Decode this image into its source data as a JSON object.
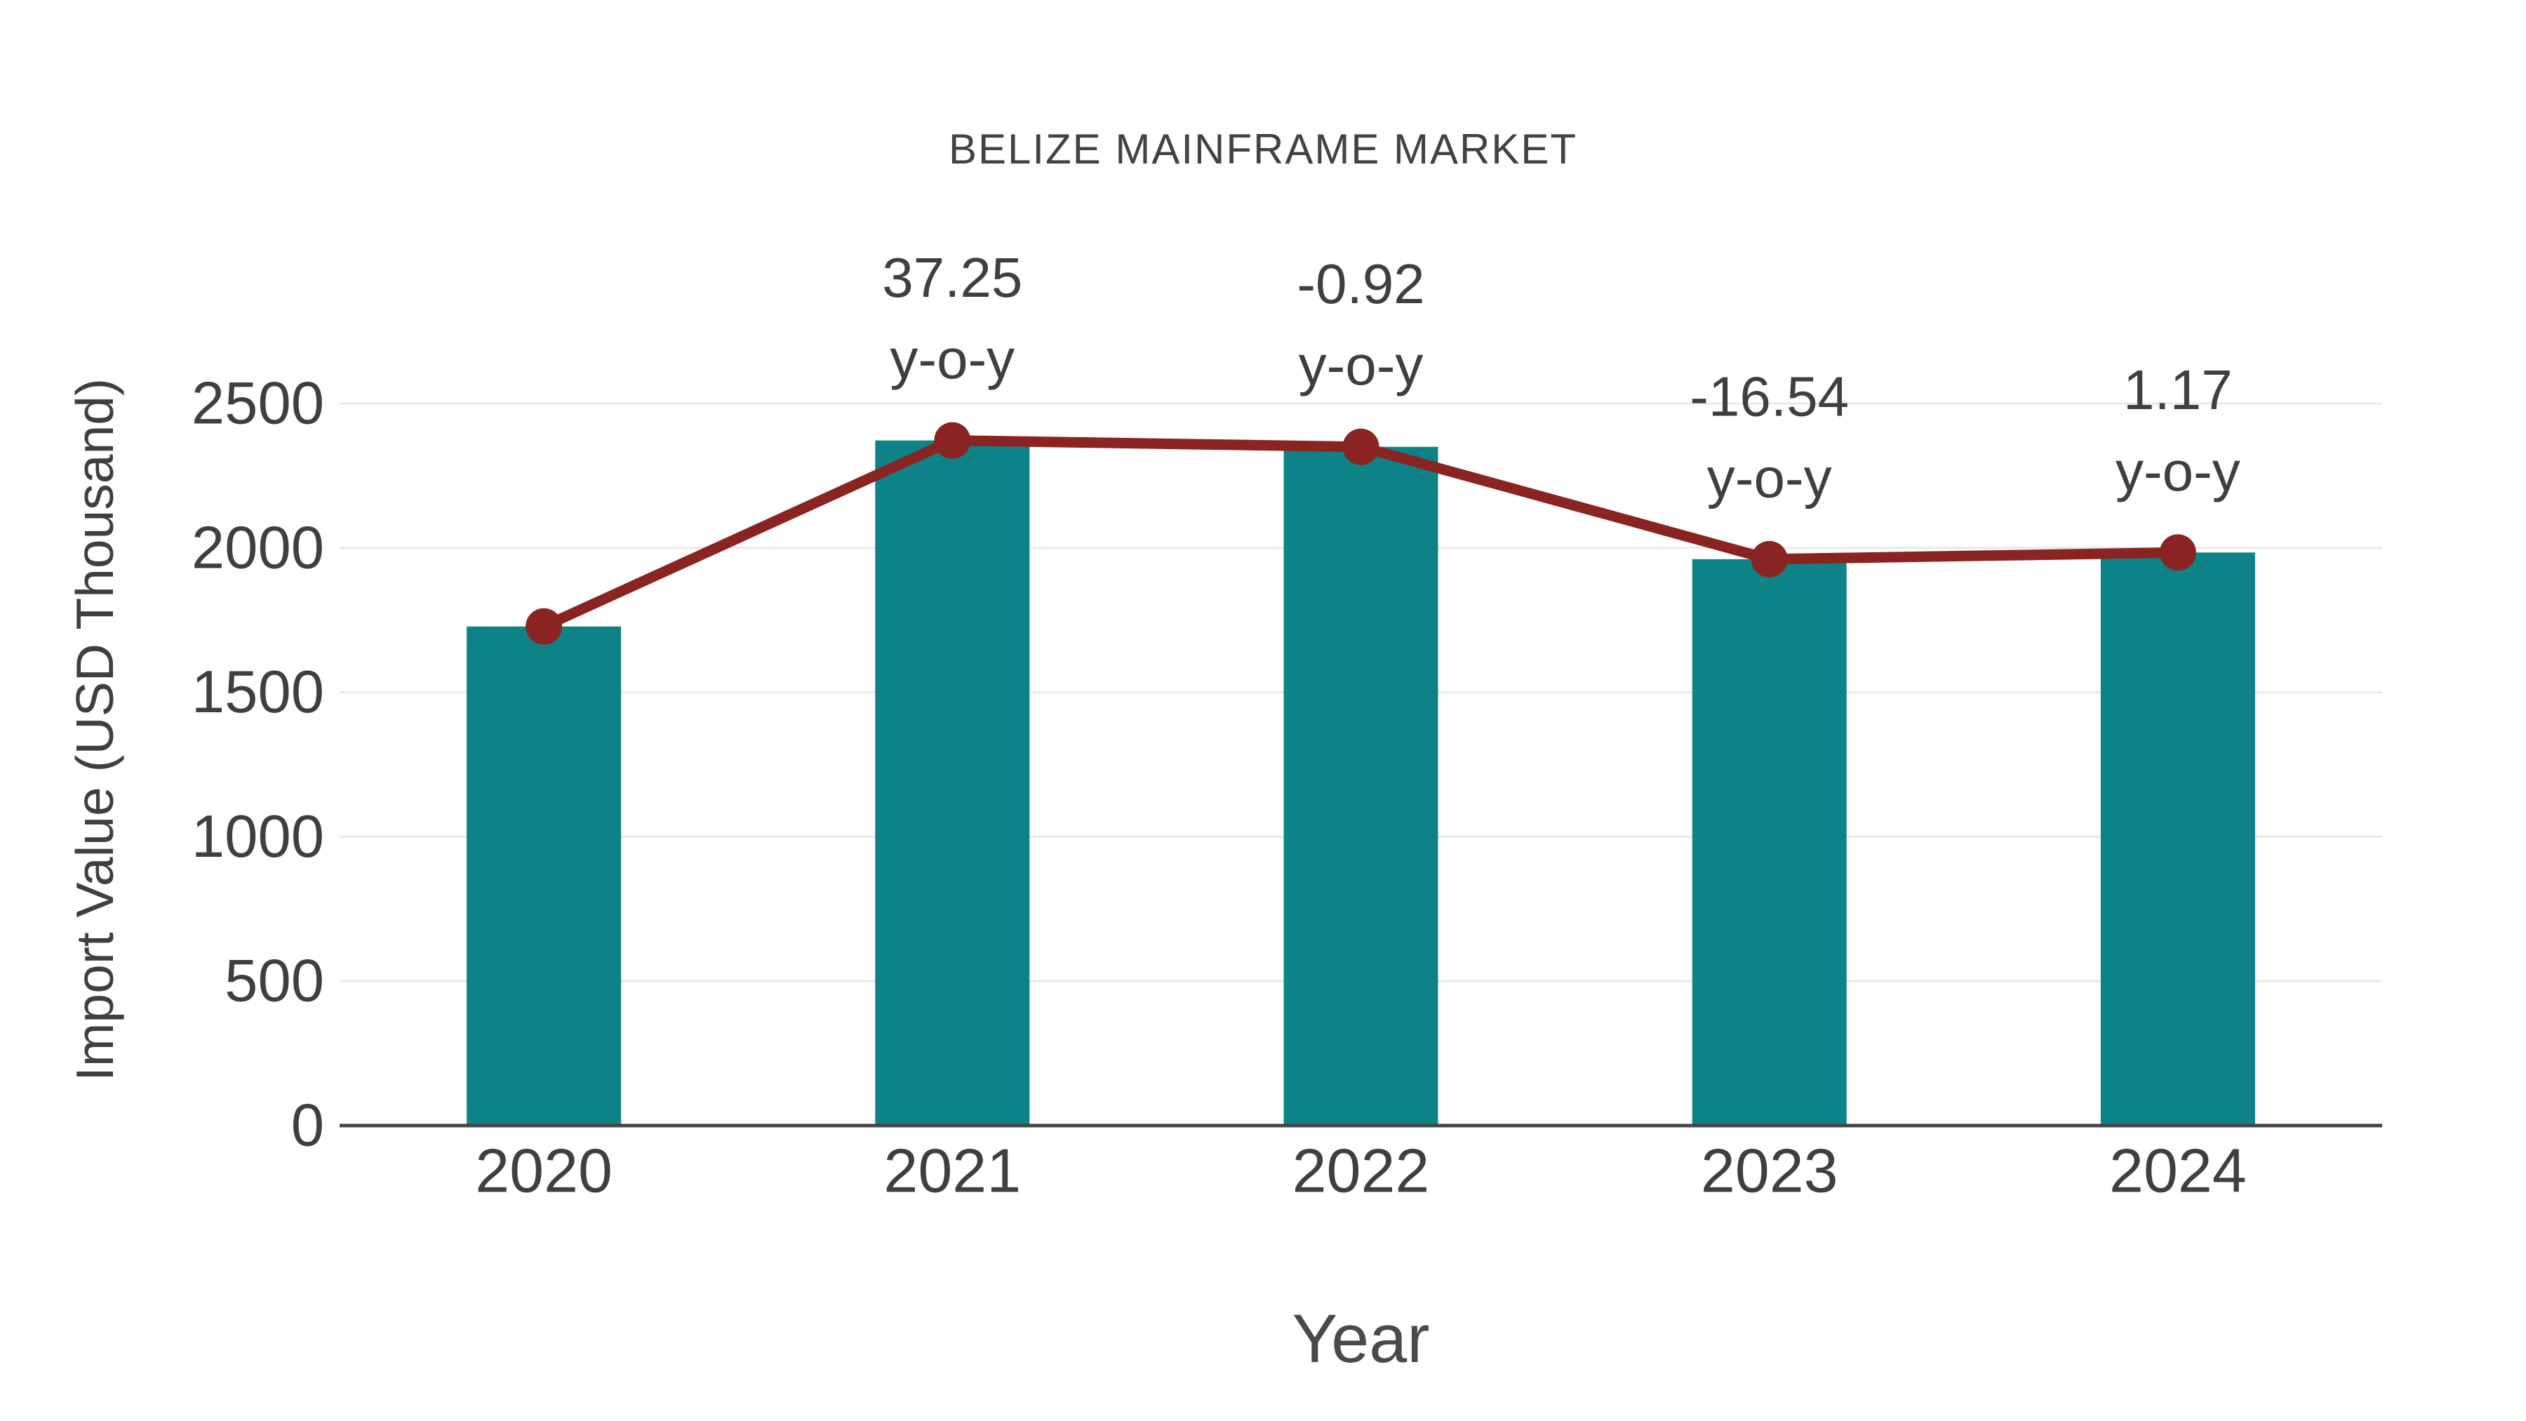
{
  "chart_data": {
    "type": "bar",
    "title": "BELIZE MAINFRAME MARKET",
    "xlabel": "Year",
    "ylabel": "Import Value (USD Thousand)",
    "categories": [
      "2020",
      "2021",
      "2022",
      "2023",
      "2024"
    ],
    "series": [
      {
        "name": "Import Value (USD Thousand)",
        "type": "bar",
        "values": [
          1728,
          2372,
          2350,
          1961,
          1984
        ]
      },
      {
        "name": "y-o-y growth",
        "type": "line",
        "values": [
          1728,
          2372,
          2350,
          1961,
          1984
        ],
        "point_labels": [
          "",
          "37.25",
          "-0.92",
          "-16.54",
          "1.17"
        ],
        "point_label_suffix": "y-o-y"
      }
    ],
    "ylim": [
      0,
      2500
    ],
    "yticks": [
      0,
      500,
      1000,
      1500,
      2000,
      2500
    ],
    "grid": true,
    "legend_position": "none",
    "colors": {
      "bar": "#0e8387",
      "line": "#8a2423",
      "marker": "#8a2423",
      "text": "#3f3f3f",
      "grid": "#e9e9e9",
      "axis": "#454545",
      "background": "#ffffff"
    }
  }
}
